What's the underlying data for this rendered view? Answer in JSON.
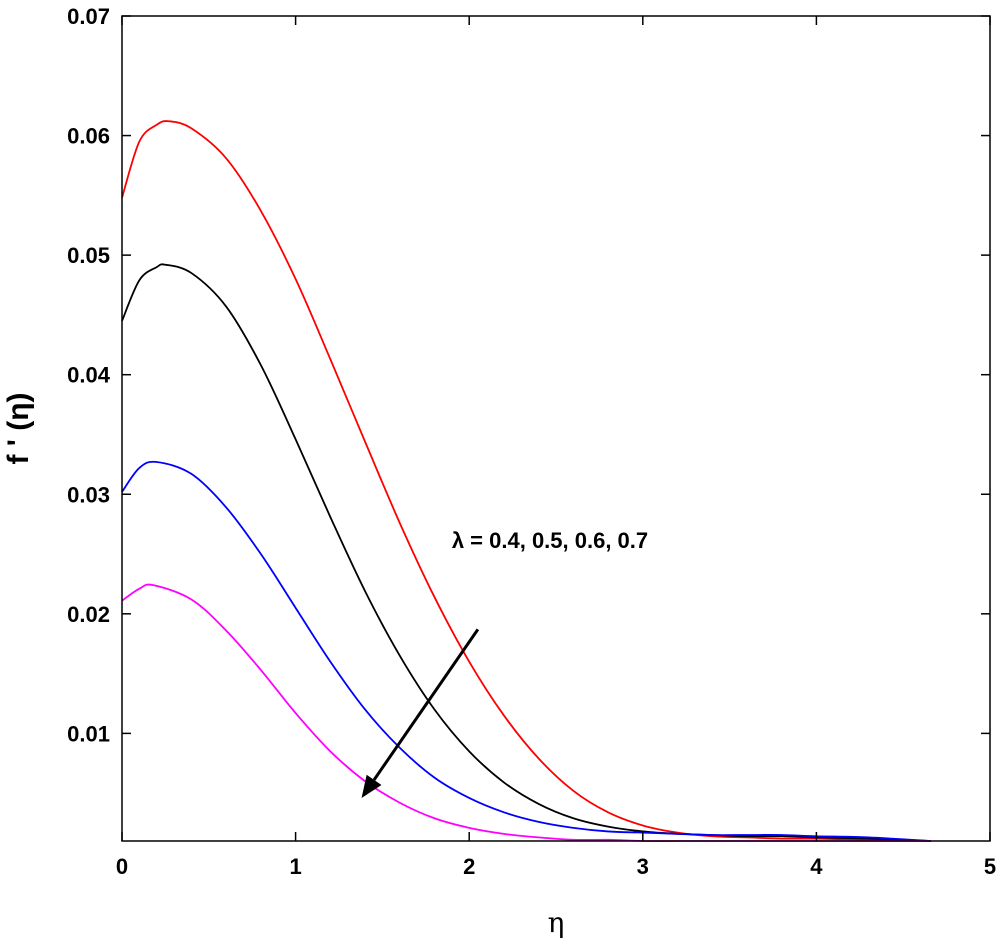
{
  "chart_data": {
    "type": "line",
    "title": "",
    "xlabel": "η",
    "ylabel": "f ' (η)",
    "xlim": [
      0,
      5
    ],
    "ylim": [
      0.001,
      0.07
    ],
    "grid": false,
    "legend": "none",
    "x_ticks": [
      {
        "value": 0,
        "label": "0"
      },
      {
        "value": 1,
        "label": "1"
      },
      {
        "value": 2,
        "label": "2"
      },
      {
        "value": 3,
        "label": "3"
      },
      {
        "value": 4,
        "label": "4"
      },
      {
        "value": 5,
        "label": "5"
      }
    ],
    "y_ticks": [
      {
        "value": 0.01,
        "label": "0.01"
      },
      {
        "value": 0.02,
        "label": "0.02"
      },
      {
        "value": 0.03,
        "label": "0.03"
      },
      {
        "value": 0.04,
        "label": "0.04"
      },
      {
        "value": 0.05,
        "label": "0.05"
      },
      {
        "value": 0.06,
        "label": "0.06"
      },
      {
        "value": 0.07,
        "label": "0.07"
      }
    ],
    "series": [
      {
        "color": "#ff0000",
        "x": [
          0,
          0.1,
          0.2,
          0.27,
          0.4,
          0.6,
          0.8,
          1.0,
          1.2,
          1.4,
          1.6,
          1.8,
          2.0,
          2.2,
          2.4,
          2.6,
          2.8,
          3.0,
          3.2,
          3.4,
          3.6,
          3.8,
          4.0,
          4.3,
          4.66
        ],
        "y": [
          0.0548,
          0.0595,
          0.0609,
          0.0612,
          0.0606,
          0.0581,
          0.0537,
          0.048,
          0.0413,
          0.0344,
          0.0276,
          0.0214,
          0.016,
          0.0115,
          0.0079,
          0.0052,
          0.0034,
          0.0023,
          0.0017,
          0.0014,
          0.0013,
          0.0012,
          0.0012,
          0.0011,
          0.001
        ]
      },
      {
        "color": "#000000",
        "x": [
          0,
          0.1,
          0.2,
          0.25,
          0.4,
          0.6,
          0.8,
          1.0,
          1.2,
          1.4,
          1.6,
          1.8,
          2.0,
          2.2,
          2.4,
          2.6,
          2.8,
          3.0,
          3.2,
          3.4,
          3.6,
          3.8,
          4.0,
          4.3,
          4.66
        ],
        "y": [
          0.0445,
          0.0479,
          0.049,
          0.0492,
          0.0485,
          0.0457,
          0.0408,
          0.0346,
          0.0281,
          0.0219,
          0.0165,
          0.012,
          0.0085,
          0.0059,
          0.0041,
          0.0029,
          0.0022,
          0.0018,
          0.0016,
          0.0015,
          0.0014,
          0.0014,
          0.0013,
          0.0012,
          0.001
        ]
      },
      {
        "color": "#0000ff",
        "x": [
          0,
          0.1,
          0.2,
          0.4,
          0.6,
          0.8,
          1.0,
          1.2,
          1.4,
          1.6,
          1.8,
          2.0,
          2.2,
          2.4,
          2.6,
          2.8,
          3.0,
          3.2,
          3.4,
          3.6,
          3.8,
          4.0,
          4.3,
          4.66
        ],
        "y": [
          0.0302,
          0.0322,
          0.0327,
          0.0317,
          0.0289,
          0.025,
          0.0205,
          0.016,
          0.012,
          0.0088,
          0.0063,
          0.0046,
          0.0034,
          0.0026,
          0.0021,
          0.0018,
          0.0017,
          0.0016,
          0.0015,
          0.0015,
          0.0015,
          0.0014,
          0.0013,
          0.001
        ]
      },
      {
        "color": "#ff00ff",
        "x": [
          0,
          0.1,
          0.18,
          0.4,
          0.6,
          0.8,
          1.0,
          1.2,
          1.4,
          1.6,
          1.8,
          2.0,
          2.2,
          2.4,
          2.6,
          2.8,
          3.0,
          3.2,
          3.4,
          3.6,
          3.8,
          4.0,
          4.3,
          4.66
        ],
        "y": [
          0.0211,
          0.0221,
          0.0224,
          0.0212,
          0.0186,
          0.0153,
          0.0117,
          0.0085,
          0.006,
          0.0042,
          0.0029,
          0.0021,
          0.0016,
          0.0013,
          0.0011,
          0.0011,
          0.001,
          0.001,
          0.001,
          0.001,
          0.001,
          0.001,
          0.001,
          0.001
        ]
      }
    ],
    "annotation": {
      "text": "λ = 0.4, 0.5, 0.6, 0.7",
      "text_pos": [
        1.9,
        0.0255
      ],
      "arrow_from": [
        2.05,
        0.0187
      ],
      "arrow_to": [
        1.38,
        0.0046
      ]
    }
  }
}
